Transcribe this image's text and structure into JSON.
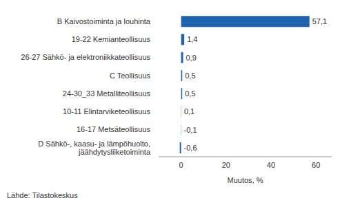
{
  "chart_data": {
    "type": "bar",
    "orientation": "horizontal",
    "categories": [
      "B Kaivostoiminta ja louhinta",
      "19-22 Kemianteollisuus",
      "26-27 Sähkö- ja elektroniikkateollisuus",
      "C Teollisuus",
      "24-30_33 Metalliteollisuus",
      "10-11 Elintarviketeollisuus",
      "16-17 Metsäteollisuus",
      "D Sähkö-, kaasu- ja lämpöhuolto, jäähdytysliiketoiminta"
    ],
    "values": [
      57.1,
      1.4,
      0.9,
      0.5,
      0.5,
      0.1,
      -0.1,
      -0.6
    ],
    "value_labels": [
      "57,1",
      "1,4",
      "0,9",
      "0,5",
      "0,5",
      "0,1",
      "-0,1",
      "-0,6"
    ],
    "data_labels": true,
    "color": "#1f64b0",
    "x_label": "Muutos, %",
    "xlim": [
      -10,
      67
    ],
    "xticks": [
      0,
      20,
      40,
      60
    ],
    "grid": false,
    "source": "Lähde: Tilastokeskus"
  }
}
